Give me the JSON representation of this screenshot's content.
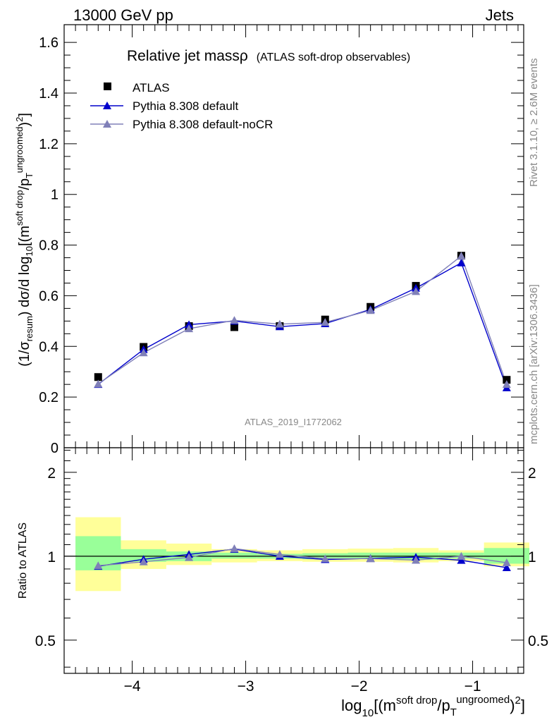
{
  "header": {
    "left": "13000 GeV pp",
    "right": "Jets"
  },
  "side_text": {
    "rivet": "Rivet 3.1.10, ≥ 2.6M events",
    "mcplots": "mcplots.cern.ch [arXiv:1306.3436]"
  },
  "colors": {
    "data": "#000000",
    "default": "#0000cc",
    "noCR": "#8080b8",
    "band_inner": "#99ff99",
    "band_outer": "#ffff99"
  },
  "chart_data": [
    {
      "type": "scatter",
      "panel": "main",
      "title": "Relative jet massρ",
      "subtitle": "(ATLAS soft-drop observables)",
      "analysis_label": "ATLAS_2019_I1772062",
      "xlabel": "log10[(m^{soft drop}/p_T^{ungroomed})^2]",
      "ylabel": "(1/σ_resum) dσ/d log10[(m^{soft drop}/p_T^{ungroomed})^2]",
      "xlim": [
        -4.6,
        -0.55
      ],
      "ylim": [
        0,
        1.67
      ],
      "yticks": [
        0,
        0.2,
        0.4,
        0.6,
        0.8,
        1,
        1.2,
        1.4,
        1.6
      ],
      "ytick_labels": [
        "0",
        "0.2",
        "0.4",
        "0.6",
        "0.8",
        "1",
        "1.2",
        "1.4",
        "1.6"
      ],
      "legend_position": "top-left",
      "x": [
        -4.3,
        -3.9,
        -3.5,
        -3.1,
        -2.7,
        -2.3,
        -1.9,
        -1.5,
        -1.1,
        -0.7
      ],
      "bin_edges": [
        -4.5,
        -4.1,
        -3.7,
        -3.3,
        -2.9,
        -2.5,
        -2.1,
        -1.7,
        -1.3,
        -0.9,
        -0.5
      ],
      "series": [
        {
          "name": "ATLAS",
          "marker": "square",
          "values": [
            0.279,
            0.398,
            0.48,
            0.476,
            0.48,
            0.506,
            0.556,
            0.639,
            0.758,
            0.268
          ]
        },
        {
          "name": "Pythia 8.308 default",
          "marker": "triangle",
          "values": [
            0.25,
            0.388,
            0.486,
            0.5,
            0.478,
            0.49,
            0.546,
            0.63,
            0.73,
            0.237
          ]
        },
        {
          "name": "Pythia 8.308 default-noCR",
          "marker": "triangle",
          "values": [
            0.252,
            0.375,
            0.47,
            0.503,
            0.488,
            0.495,
            0.542,
            0.617,
            0.757,
            0.25
          ]
        }
      ]
    },
    {
      "type": "line",
      "panel": "ratio",
      "ylabel": "Ratio to ATLAS",
      "xlabel": "log10[(m^{soft drop}/p_T^{ungroomed})^2]",
      "xlim": [
        -4.6,
        -0.55
      ],
      "ylim": [
        0.38,
        2.45
      ],
      "log_y": true,
      "yticks": [
        0.5,
        1,
        2
      ],
      "ytick_labels": [
        "0.5",
        "1",
        "2"
      ],
      "xticks": [
        -4,
        -3,
        -2,
        -1
      ],
      "xtick_labels": [
        "−4",
        "−3",
        "−2",
        "−1"
      ],
      "x": [
        -4.3,
        -3.9,
        -3.5,
        -3.1,
        -2.7,
        -2.3,
        -1.9,
        -1.5,
        -1.1,
        -0.7
      ],
      "bin_edges": [
        -4.5,
        -4.1,
        -3.7,
        -3.3,
        -2.9,
        -2.5,
        -2.1,
        -1.7,
        -1.3,
        -0.9,
        -0.5
      ],
      "band_inner_low": [
        0.89,
        0.955,
        0.96,
        0.98,
        0.98,
        0.975,
        0.975,
        0.97,
        0.98,
        0.94
      ],
      "band_inner_high": [
        1.18,
        1.06,
        1.04,
        1.03,
        1.02,
        1.025,
        1.03,
        1.03,
        1.03,
        1.07
      ],
      "band_outer_low": [
        0.75,
        0.9,
        0.93,
        0.95,
        0.96,
        0.955,
        0.955,
        0.95,
        0.96,
        0.92
      ],
      "band_outer_high": [
        1.38,
        1.14,
        1.11,
        1.06,
        1.05,
        1.06,
        1.065,
        1.07,
        1.05,
        1.12
      ],
      "series": [
        {
          "name": "Pythia 8.308 default",
          "values": [
            0.92,
            0.975,
            1.015,
            1.06,
            1.0,
            0.973,
            0.982,
            0.992,
            0.967,
            0.91
          ]
        },
        {
          "name": "Pythia 8.308 default-noCR",
          "values": [
            0.925,
            0.955,
            0.99,
            1.065,
            1.015,
            0.98,
            0.98,
            0.968,
            1.0,
            0.948
          ]
        }
      ]
    }
  ]
}
